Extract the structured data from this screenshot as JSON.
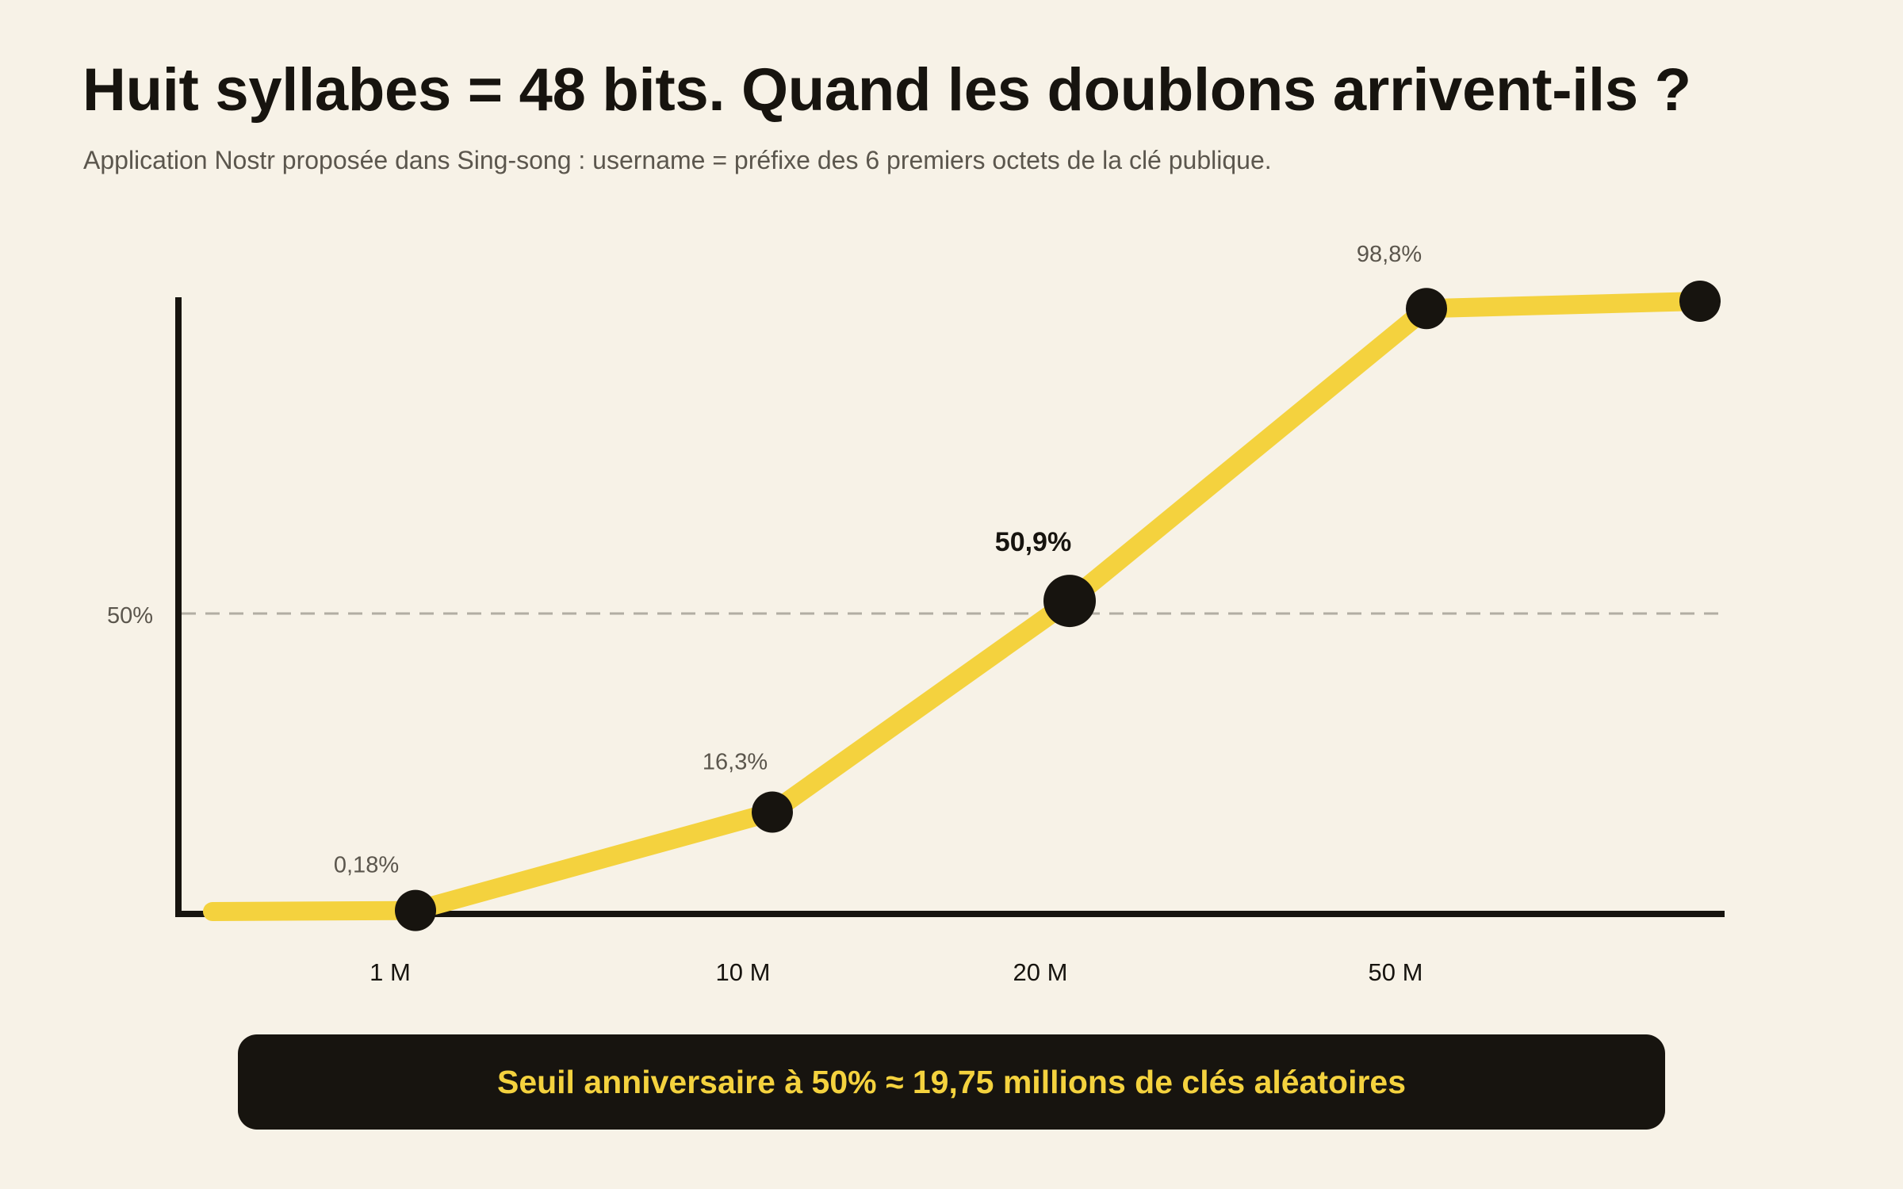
{
  "title": "Huit syllabes = 48 bits. Quand les doublons arrivent-ils ?",
  "subtitle": "Application Nostr proposée dans Sing-song : username = préfixe des 6 premiers octets de la clé publique.",
  "callout": "Seuil anniversaire à 50% ≈ 19,75 millions de clés aléatoires",
  "colors": {
    "background": "#f7f2e7",
    "ink": "#17140f",
    "accent": "#f4d23e",
    "muted": "#5b564d",
    "reference_line": "#b2ada3"
  },
  "chart_data": {
    "type": "line",
    "title": "",
    "xlabel": "",
    "ylabel": "",
    "ylim": [
      0,
      100
    ],
    "grid": false,
    "legend": "none",
    "x_ticks": [
      {
        "value": 1,
        "label": "1 M"
      },
      {
        "value": 10,
        "label": "10 M"
      },
      {
        "value": 20,
        "label": "20 M"
      },
      {
        "value": 50,
        "label": "50 M"
      }
    ],
    "y_reference": {
      "value": 50,
      "label": "50%"
    },
    "series": [
      {
        "points": [
          {
            "x": 0,
            "y": 0,
            "marker": false,
            "label": ""
          },
          {
            "x": 1,
            "y": 0.18,
            "marker": true,
            "label": "0,18%"
          },
          {
            "x": 10,
            "y": 16.3,
            "marker": true,
            "label": "16,3%"
          },
          {
            "x": 20,
            "y": 50.9,
            "marker": true,
            "label": "50,9%",
            "highlight": true
          },
          {
            "x": 50,
            "y": 98.8,
            "marker": true,
            "label": "98,8%"
          },
          {
            "x": 100,
            "y": 100,
            "marker": true,
            "label": ""
          }
        ]
      }
    ]
  }
}
